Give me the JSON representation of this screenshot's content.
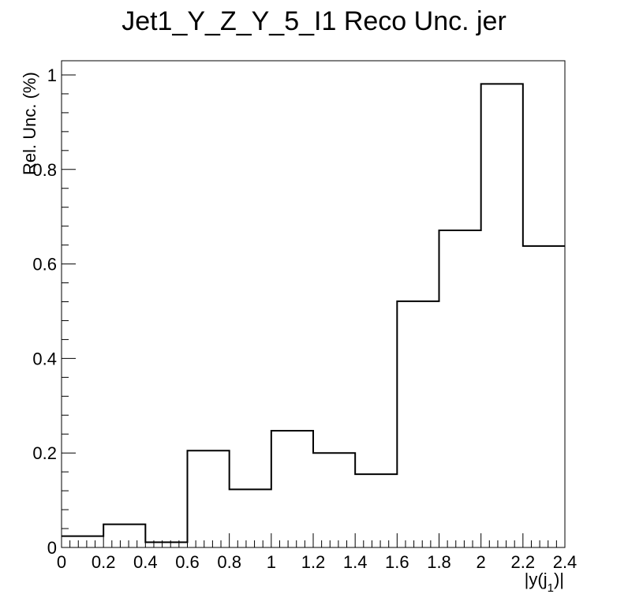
{
  "chart_data": {
    "type": "histogram",
    "title": "Jet1_Y_Z_Y_5_I1 Reco Unc. jer",
    "xlabel": "|y(j1)|",
    "xlabel_main": "|y(j",
    "xlabel_sub": "1",
    "xlabel_tail": ")|",
    "ylabel": "Rel. Unc. (%)",
    "xlim": [
      0,
      2.4
    ],
    "ylim": [
      0,
      1.03
    ],
    "x_ticks": [
      "0",
      "0.2",
      "0.4",
      "0.6",
      "0.8",
      "1",
      "1.2",
      "1.4",
      "1.6",
      "1.8",
      "2",
      "2.2",
      "2.4"
    ],
    "x_tick_values": [
      0,
      0.2,
      0.4,
      0.6,
      0.8,
      1.0,
      1.2,
      1.4,
      1.6,
      1.8,
      2.0,
      2.2,
      2.4
    ],
    "y_ticks": [
      "0",
      "0.2",
      "0.4",
      "0.6",
      "0.8",
      "1"
    ],
    "y_tick_values": [
      0,
      0.2,
      0.4,
      0.6,
      0.8,
      1.0
    ],
    "bin_edges": [
      0,
      0.2,
      0.4,
      0.6,
      0.8,
      1.0,
      1.2,
      1.4,
      1.6,
      1.8,
      2.0,
      2.2,
      2.4
    ],
    "values": [
      0.024,
      0.049,
      0.011,
      0.205,
      0.123,
      0.247,
      0.2,
      0.155,
      0.521,
      0.671,
      0.981,
      0.638
    ],
    "line_color": "#000000",
    "grid": false,
    "legend": "none"
  }
}
